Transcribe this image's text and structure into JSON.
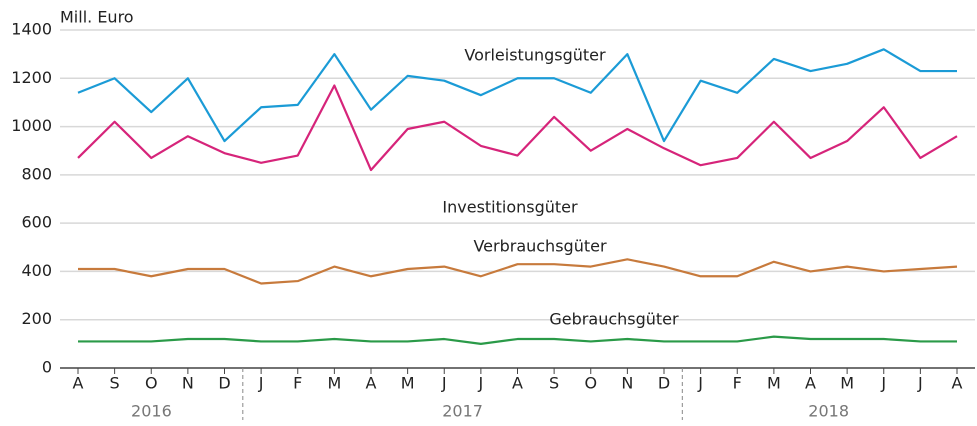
{
  "chart_data": {
    "type": "line",
    "y_label": "Mill. Euro",
    "category_groups": [
      {
        "label": "2016",
        "categories": [
          "A",
          "S",
          "O",
          "N",
          "D"
        ]
      },
      {
        "label": "2017",
        "categories": [
          "J",
          "F",
          "M",
          "A",
          "M",
          "J",
          "J",
          "A",
          "S",
          "O",
          "N",
          "D"
        ]
      },
      {
        "label": "2018",
        "categories": [
          "J",
          "F",
          "M",
          "A",
          "M",
          "J",
          "J",
          "A"
        ]
      }
    ],
    "series": [
      {
        "name": "Vorleistungsgüter",
        "color": "#1b9bd6",
        "values": [
          1140,
          1200,
          1060,
          1200,
          940,
          1080,
          1090,
          1300,
          1070,
          1210,
          1190,
          1130,
          1200,
          1200,
          1140,
          1300,
          940,
          1190,
          1140,
          1280,
          1230,
          1260,
          1320,
          1230,
          1230
        ]
      },
      {
        "name": "Investitionsgüter",
        "color": "#d6247a",
        "values": [
          870,
          1020,
          870,
          960,
          890,
          850,
          880,
          1170,
          820,
          990,
          1020,
          920,
          880,
          1040,
          900,
          990,
          910,
          840,
          870,
          1020,
          870,
          940,
          1080,
          870,
          960
        ]
      },
      {
        "name": "Verbrauchsgüter",
        "color": "#c77a3c",
        "values": [
          410,
          410,
          380,
          410,
          410,
          350,
          360,
          420,
          380,
          410,
          420,
          380,
          430,
          430,
          420,
          450,
          420,
          380,
          380,
          440,
          400,
          420,
          400,
          410,
          420
        ]
      },
      {
        "name": "Gebrauchsgüter",
        "color": "#2a9a48",
        "values": [
          110,
          110,
          110,
          120,
          120,
          110,
          110,
          120,
          110,
          110,
          120,
          100,
          120,
          120,
          110,
          120,
          110,
          110,
          110,
          130,
          120,
          120,
          120,
          110,
          110
        ]
      }
    ],
    "ylim": [
      0,
      1400
    ],
    "yticks": [
      0,
      200,
      400,
      600,
      800,
      1000,
      1200,
      1400
    ],
    "grid": true
  }
}
